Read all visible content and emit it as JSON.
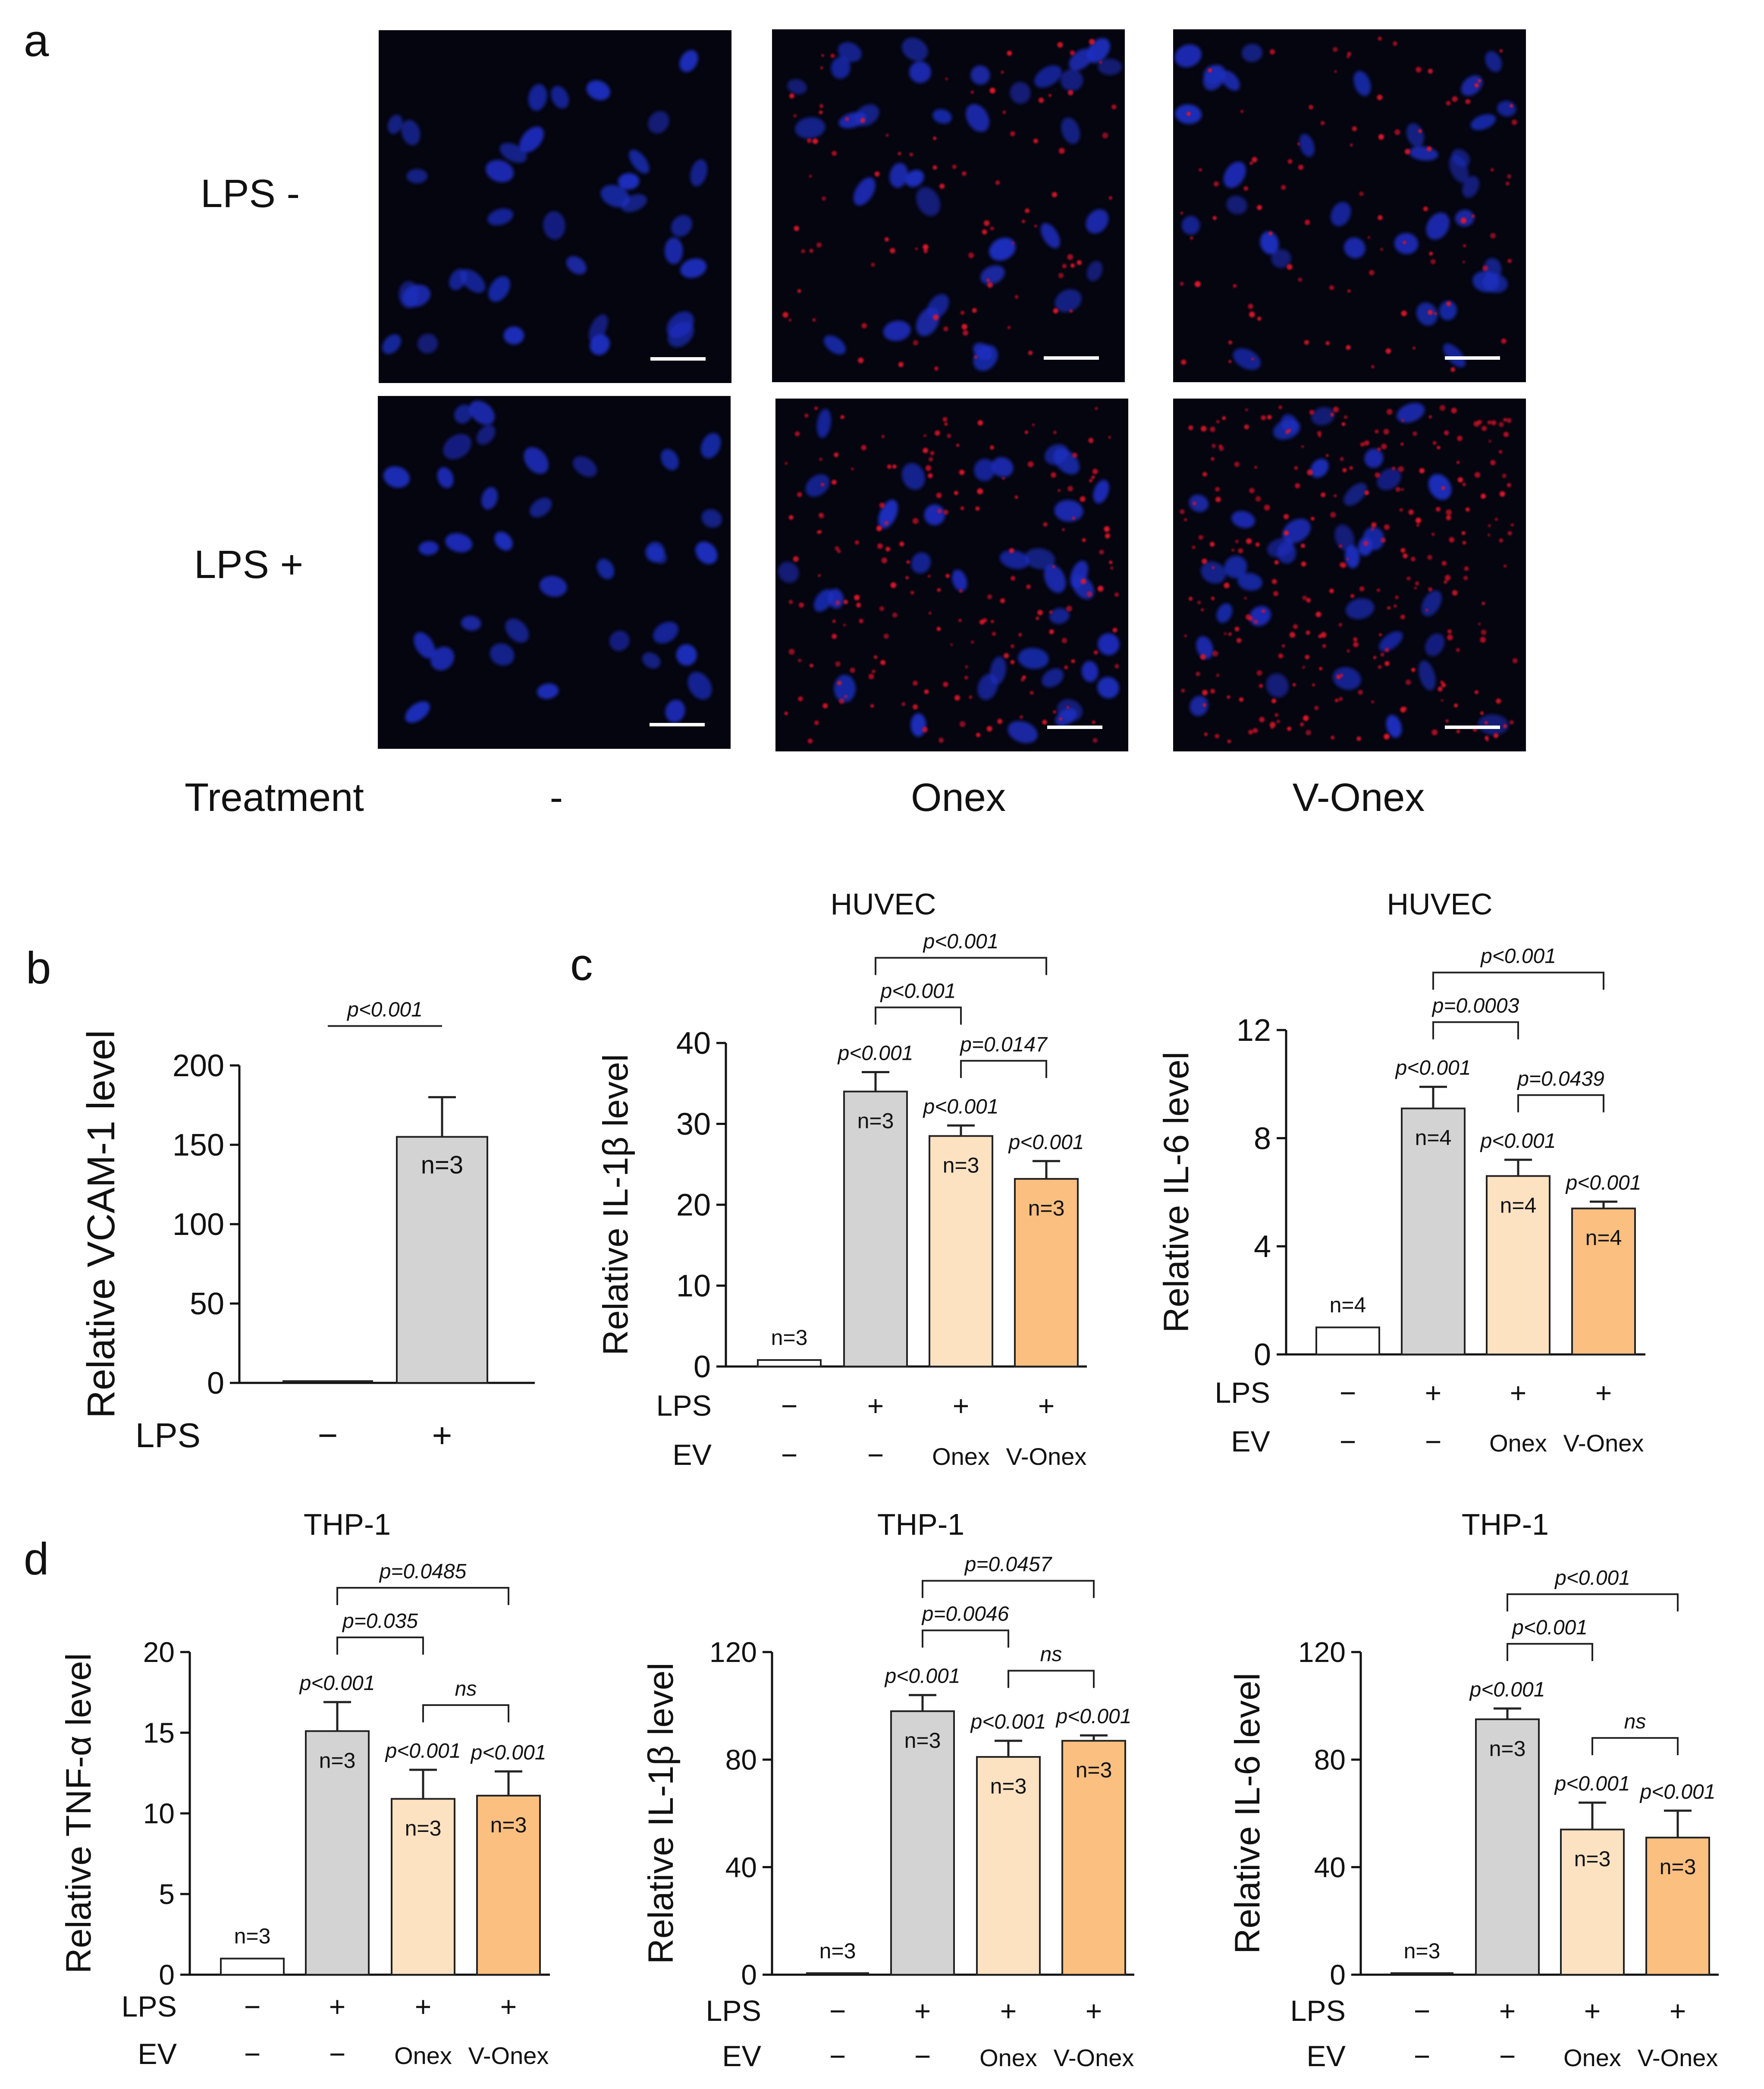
{
  "panel_a": {
    "letter": "a",
    "row_labels": [
      "LPS -",
      "LPS +"
    ],
    "treatment_label": "Treatment",
    "column_labels": [
      "-",
      "Onex",
      "V-Onex"
    ],
    "images": [
      {
        "name": "micrograph-lps-neg-none",
        "row": 0,
        "col": 0,
        "red": 0
      },
      {
        "name": "micrograph-lps-neg-onex",
        "row": 0,
        "col": 1,
        "red": 1
      },
      {
        "name": "micrograph-lps-neg-v-onex",
        "row": 0,
        "col": 2,
        "red": 1
      },
      {
        "name": "micrograph-lps-pos-none",
        "row": 1,
        "col": 0,
        "red": 0
      },
      {
        "name": "micrograph-lps-pos-onex",
        "row": 1,
        "col": 1,
        "red": 2
      },
      {
        "name": "micrograph-lps-pos-v-onex",
        "row": 1,
        "col": 2,
        "red": 3
      }
    ],
    "colors": {
      "background": "#05050f",
      "nucleus": "#1d2fc4",
      "vcam_signal": "#e0142a",
      "scale_bar": "#ffffff"
    }
  },
  "chart_data": [
    {
      "id": "b",
      "letter": "b",
      "type": "bar",
      "title": "",
      "ylabel": "Relative VCAM-1 level",
      "ylim": [
        0,
        200
      ],
      "yticks": [
        "0",
        "50",
        "100",
        "150",
        "200"
      ],
      "rows": [
        {
          "label": "LPS",
          "values": [
            "−",
            "+"
          ]
        }
      ],
      "values": [
        1,
        155
      ],
      "errors": [
        0,
        25
      ],
      "colors": [
        "#ffffff",
        "#d3d3d3"
      ],
      "bar_labels": [
        "",
        "n=3"
      ],
      "star_labels": [
        "",
        ""
      ],
      "brackets": [
        {
          "from": 0,
          "to": 1,
          "label": "p<0.001"
        }
      ]
    },
    {
      "id": "c1",
      "letter": "c",
      "type": "bar",
      "title": "HUVEC",
      "ylabel": "Relative IL-1β level",
      "ylim": [
        0,
        40
      ],
      "yticks": [
        "0",
        "10",
        "20",
        "30",
        "40"
      ],
      "rows": [
        {
          "label": "LPS",
          "values": [
            "−",
            "+",
            "+",
            "+"
          ]
        },
        {
          "label": "EV",
          "values": [
            "−",
            "−",
            "Onex",
            "V-Onex"
          ]
        }
      ],
      "values": [
        0.8,
        34,
        28.5,
        23.2
      ],
      "errors": [
        0,
        2.4,
        1.3,
        2.2
      ],
      "colors": [
        "#ffffff",
        "#d3d3d3",
        "#fde2c2",
        "#fbbf80"
      ],
      "bar_labels": [
        "n=3",
        "n=3",
        "n=3",
        "n=3"
      ],
      "star_labels": [
        "",
        "p<0.001",
        "p<0.001",
        "p<0.001"
      ],
      "brackets": [
        {
          "from": 1,
          "to": 2,
          "label": "p<0.001"
        },
        {
          "from": 2,
          "to": 3,
          "label": "p=0.0147"
        },
        {
          "from": 1,
          "to": 3,
          "label": "p<0.001"
        }
      ]
    },
    {
      "id": "c2",
      "letter": "",
      "type": "bar",
      "title": "HUVEC",
      "ylabel": "Relative IL-6 level",
      "ylim": [
        0,
        12
      ],
      "yticks": [
        "0",
        "4",
        "8",
        "12"
      ],
      "rows": [
        {
          "label": "LPS",
          "values": [
            "−",
            "+",
            "+",
            "+"
          ]
        },
        {
          "label": "EV",
          "values": [
            "−",
            "−",
            "Onex",
            "V-Onex"
          ]
        }
      ],
      "values": [
        1,
        9.1,
        6.6,
        5.4
      ],
      "errors": [
        0,
        0.8,
        0.6,
        0.25
      ],
      "colors": [
        "#ffffff",
        "#d3d3d3",
        "#fde2c2",
        "#fbbf80"
      ],
      "bar_labels": [
        "n=4",
        "n=4",
        "n=4",
        "n=4"
      ],
      "star_labels": [
        "",
        "p<0.001",
        "p<0.001",
        "p<0.001"
      ],
      "brackets": [
        {
          "from": 1,
          "to": 2,
          "label": "p=0.0003"
        },
        {
          "from": 2,
          "to": 3,
          "label": "p=0.0439"
        },
        {
          "from": 1,
          "to": 3,
          "label": "p<0.001"
        }
      ]
    },
    {
      "id": "d1",
      "letter": "d",
      "type": "bar",
      "title": "THP-1",
      "ylabel": "Relative TNF-α level",
      "ylim": [
        0,
        20
      ],
      "yticks": [
        "0",
        "5",
        "10",
        "15",
        "20"
      ],
      "rows": [
        {
          "label": "LPS",
          "values": [
            "−",
            "+",
            "+",
            "+"
          ]
        },
        {
          "label": "EV",
          "values": [
            "−",
            "−",
            "Onex",
            "V-Onex"
          ]
        }
      ],
      "values": [
        1,
        15.1,
        10.9,
        11.1
      ],
      "errors": [
        0,
        1.8,
        1.8,
        1.5
      ],
      "colors": [
        "#ffffff",
        "#d3d3d3",
        "#fde2c2",
        "#fbbf80"
      ],
      "bar_labels": [
        "n=3",
        "n=3",
        "n=3",
        "n=3"
      ],
      "star_labels": [
        "",
        "p<0.001",
        "p<0.001",
        "p<0.001"
      ],
      "brackets": [
        {
          "from": 1,
          "to": 2,
          "label": "p=0.035"
        },
        {
          "from": 2,
          "to": 3,
          "label": "ns"
        },
        {
          "from": 1,
          "to": 3,
          "label": "p=0.0485"
        }
      ]
    },
    {
      "id": "d2",
      "letter": "",
      "type": "bar",
      "title": "THP-1",
      "ylabel": "Relative IL-1β level",
      "ylim": [
        0,
        120
      ],
      "yticks": [
        "0",
        "40",
        "80",
        "120"
      ],
      "rows": [
        {
          "label": "LPS",
          "values": [
            "−",
            "+",
            "+",
            "+"
          ]
        },
        {
          "label": "EV",
          "values": [
            "−",
            "−",
            "Onex",
            "V-Onex"
          ]
        }
      ],
      "values": [
        0.5,
        98,
        81,
        87
      ],
      "errors": [
        0,
        6,
        6,
        2
      ],
      "colors": [
        "#ffffff",
        "#d3d3d3",
        "#fde2c2",
        "#fbbf80"
      ],
      "bar_labels": [
        "n=3",
        "n=3",
        "n=3",
        "n=3"
      ],
      "star_labels": [
        "",
        "p<0.001",
        "p<0.001",
        "p<0.001"
      ],
      "brackets": [
        {
          "from": 1,
          "to": 2,
          "label": "p=0.0046"
        },
        {
          "from": 2,
          "to": 3,
          "label": "ns"
        },
        {
          "from": 1,
          "to": 3,
          "label": "p=0.0457"
        }
      ]
    },
    {
      "id": "d3",
      "letter": "",
      "type": "bar",
      "title": "THP-1",
      "ylabel": "Relative IL-6 level",
      "ylim": [
        0,
        120
      ],
      "yticks": [
        "0",
        "40",
        "80",
        "120"
      ],
      "rows": [
        {
          "label": "LPS",
          "values": [
            "−",
            "+",
            "+",
            "+"
          ]
        },
        {
          "label": "EV",
          "values": [
            "−",
            "−",
            "Onex",
            "V-Onex"
          ]
        }
      ],
      "values": [
        0.5,
        95,
        54,
        51
      ],
      "errors": [
        0,
        4,
        10,
        10
      ],
      "colors": [
        "#ffffff",
        "#d3d3d3",
        "#fde2c2",
        "#fbbf80"
      ],
      "bar_labels": [
        "n=3",
        "n=3",
        "n=3",
        "n=3"
      ],
      "star_labels": [
        "",
        "p<0.001",
        "p<0.001",
        "p<0.001"
      ],
      "brackets": [
        {
          "from": 1,
          "to": 2,
          "label": "p<0.001"
        },
        {
          "from": 2,
          "to": 3,
          "label": "ns"
        },
        {
          "from": 1,
          "to": 3,
          "label": "p<0.001"
        }
      ]
    }
  ]
}
